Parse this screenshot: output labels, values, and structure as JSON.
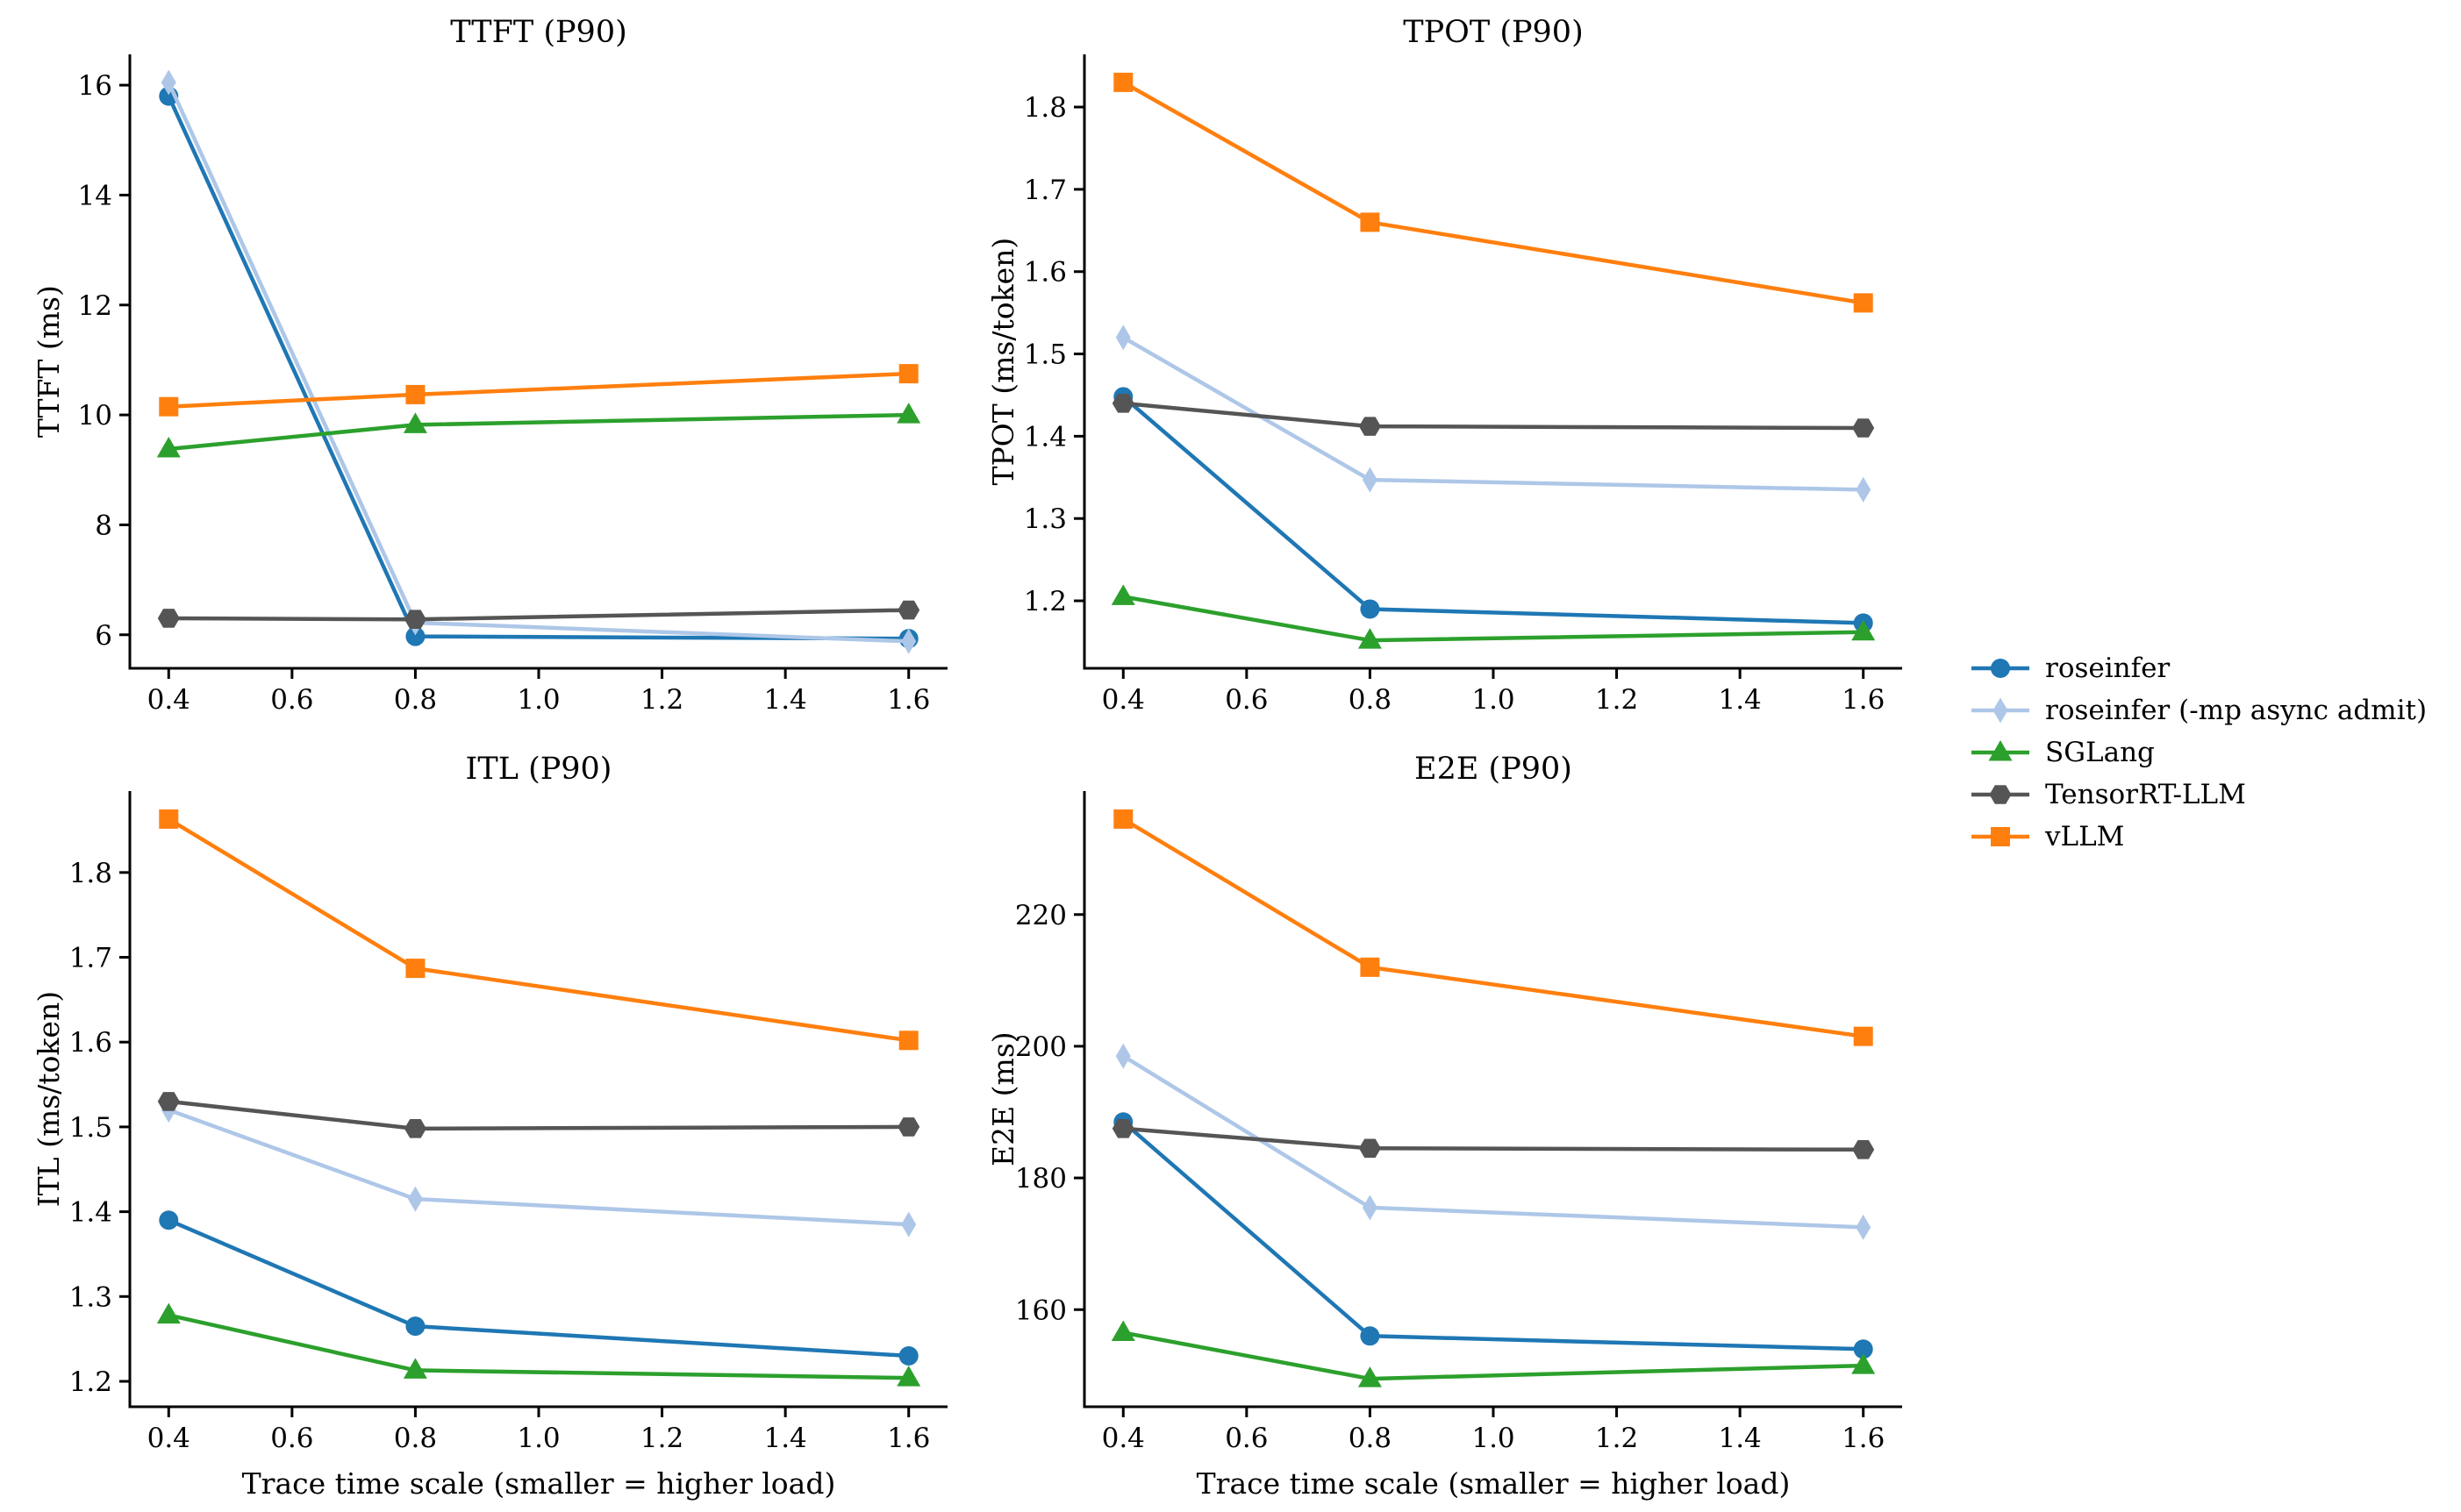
{
  "figure": {
    "background": "#ffffff",
    "text_color": "#000000"
  },
  "legend": {
    "position": "right-center",
    "frame": false,
    "entries": [
      {
        "label": "roseinfer",
        "color": "#1f77b4",
        "marker": "circle"
      },
      {
        "label": "roseinfer (-mp async admit)",
        "color": "#aec7e8",
        "marker": "thin-diamond"
      },
      {
        "label": "SGLang",
        "color": "#2ca02c",
        "marker": "triangle-up"
      },
      {
        "label": "TensorRT-LLM",
        "color": "#555555",
        "marker": "hexagon"
      },
      {
        "label": "vLLM",
        "color": "#ff7f0e",
        "marker": "square"
      }
    ]
  },
  "chart_data": [
    {
      "id": "ttft",
      "type": "line",
      "title": "TTFT (P90)",
      "xlabel": "",
      "ylabel": "TTFT (ms)",
      "x": [
        0.4,
        0.8,
        1.6
      ],
      "xlim": [
        0.337,
        1.663
      ],
      "xticks": [
        0.4,
        0.6,
        0.8,
        1.0,
        1.2,
        1.4,
        1.6
      ],
      "xtick_labels": [
        "0.4",
        "0.6",
        "0.8",
        "1.0",
        "1.2",
        "1.4",
        "1.6"
      ],
      "ylim": [
        5.39,
        16.56
      ],
      "yticks": [
        6,
        8,
        10,
        12,
        14,
        16
      ],
      "ytick_labels": [
        "6",
        "8",
        "10",
        "12",
        "14",
        "16"
      ],
      "grid": false,
      "series": [
        {
          "name": "roseinfer",
          "color": "#1f77b4",
          "marker": "circle",
          "values": [
            15.8,
            5.97,
            5.93
          ]
        },
        {
          "name": "roseinfer (-mp async admit)",
          "color": "#aec7e8",
          "marker": "thin-diamond",
          "values": [
            16.05,
            6.22,
            5.88
          ]
        },
        {
          "name": "SGLang",
          "color": "#2ca02c",
          "marker": "triangle-up",
          "values": [
            9.38,
            9.82,
            10.0
          ]
        },
        {
          "name": "TensorRT-LLM",
          "color": "#555555",
          "marker": "hexagon",
          "values": [
            6.3,
            6.28,
            6.45
          ]
        },
        {
          "name": "vLLM",
          "color": "#ff7f0e",
          "marker": "square",
          "values": [
            10.15,
            10.37,
            10.75
          ]
        }
      ]
    },
    {
      "id": "tpot",
      "type": "line",
      "title": "TPOT (P90)",
      "xlabel": "",
      "ylabel": "TPOT (ms/token)",
      "x": [
        0.4,
        0.8,
        1.6
      ],
      "xlim": [
        0.337,
        1.663
      ],
      "xticks": [
        0.4,
        0.6,
        0.8,
        1.0,
        1.2,
        1.4,
        1.6
      ],
      "xtick_labels": [
        "0.4",
        "0.6",
        "0.8",
        "1.0",
        "1.2",
        "1.4",
        "1.6"
      ],
      "ylim": [
        1.118,
        1.864
      ],
      "yticks": [
        1.2,
        1.3,
        1.4,
        1.5,
        1.6,
        1.7,
        1.8
      ],
      "ytick_labels": [
        "1.2",
        "1.3",
        "1.4",
        "1.5",
        "1.6",
        "1.7",
        "1.8"
      ],
      "grid": false,
      "series": [
        {
          "name": "roseinfer",
          "color": "#1f77b4",
          "marker": "circle",
          "values": [
            1.448,
            1.19,
            1.173
          ]
        },
        {
          "name": "roseinfer (-mp async admit)",
          "color": "#aec7e8",
          "marker": "thin-diamond",
          "values": [
            1.52,
            1.347,
            1.335
          ]
        },
        {
          "name": "SGLang",
          "color": "#2ca02c",
          "marker": "triangle-up",
          "values": [
            1.205,
            1.152,
            1.162
          ]
        },
        {
          "name": "TensorRT-LLM",
          "color": "#555555",
          "marker": "hexagon",
          "values": [
            1.44,
            1.412,
            1.41
          ]
        },
        {
          "name": "vLLM",
          "color": "#ff7f0e",
          "marker": "square",
          "values": [
            1.83,
            1.66,
            1.562
          ]
        }
      ]
    },
    {
      "id": "itl",
      "type": "line",
      "title": "ITL (P90)",
      "xlabel": "Trace time scale (smaller = higher load)",
      "ylabel": "ITL (ms/token)",
      "x": [
        0.4,
        0.8,
        1.6
      ],
      "xlim": [
        0.337,
        1.663
      ],
      "xticks": [
        0.4,
        0.6,
        0.8,
        1.0,
        1.2,
        1.4,
        1.6
      ],
      "xtick_labels": [
        "0.4",
        "0.6",
        "0.8",
        "1.0",
        "1.2",
        "1.4",
        "1.6"
      ],
      "ylim": [
        1.17,
        1.896
      ],
      "yticks": [
        1.2,
        1.3,
        1.4,
        1.5,
        1.6,
        1.7,
        1.8
      ],
      "ytick_labels": [
        "1.2",
        "1.3",
        "1.4",
        "1.5",
        "1.6",
        "1.7",
        "1.8"
      ],
      "grid": false,
      "series": [
        {
          "name": "roseinfer",
          "color": "#1f77b4",
          "marker": "circle",
          "values": [
            1.39,
            1.265,
            1.23
          ]
        },
        {
          "name": "roseinfer (-mp async admit)",
          "color": "#aec7e8",
          "marker": "thin-diamond",
          "values": [
            1.52,
            1.415,
            1.385
          ]
        },
        {
          "name": "SGLang",
          "color": "#2ca02c",
          "marker": "triangle-up",
          "values": [
            1.278,
            1.213,
            1.204
          ]
        },
        {
          "name": "TensorRT-LLM",
          "color": "#555555",
          "marker": "hexagon",
          "values": [
            1.53,
            1.498,
            1.5
          ]
        },
        {
          "name": "vLLM",
          "color": "#ff7f0e",
          "marker": "square",
          "values": [
            1.863,
            1.687,
            1.602
          ]
        }
      ]
    },
    {
      "id": "e2e",
      "type": "line",
      "title": "E2E (P90)",
      "xlabel": "Trace time scale (smaller = higher load)",
      "ylabel": "E2E (ms)",
      "x": [
        0.4,
        0.8,
        1.6
      ],
      "xlim": [
        0.337,
        1.663
      ],
      "xticks": [
        0.4,
        0.6,
        0.8,
        1.0,
        1.2,
        1.4,
        1.6
      ],
      "xtick_labels": [
        "0.4",
        "0.6",
        "0.8",
        "1.0",
        "1.2",
        "1.4",
        "1.6"
      ],
      "ylim": [
        145.25,
        238.75
      ],
      "yticks": [
        160,
        180,
        200,
        220
      ],
      "ytick_labels": [
        "160",
        "180",
        "200",
        "220"
      ],
      "grid": false,
      "series": [
        {
          "name": "roseinfer",
          "color": "#1f77b4",
          "marker": "circle",
          "values": [
            188.5,
            156.0,
            154.0
          ]
        },
        {
          "name": "roseinfer (-mp async admit)",
          "color": "#aec7e8",
          "marker": "thin-diamond",
          "values": [
            198.5,
            175.5,
            172.5
          ]
        },
        {
          "name": "SGLang",
          "color": "#2ca02c",
          "marker": "triangle-up",
          "values": [
            156.5,
            149.5,
            151.5
          ]
        },
        {
          "name": "TensorRT-LLM",
          "color": "#555555",
          "marker": "hexagon",
          "values": [
            187.5,
            184.5,
            184.3
          ]
        },
        {
          "name": "vLLM",
          "color": "#ff7f0e",
          "marker": "square",
          "values": [
            234.5,
            212.0,
            201.5
          ]
        }
      ]
    }
  ]
}
